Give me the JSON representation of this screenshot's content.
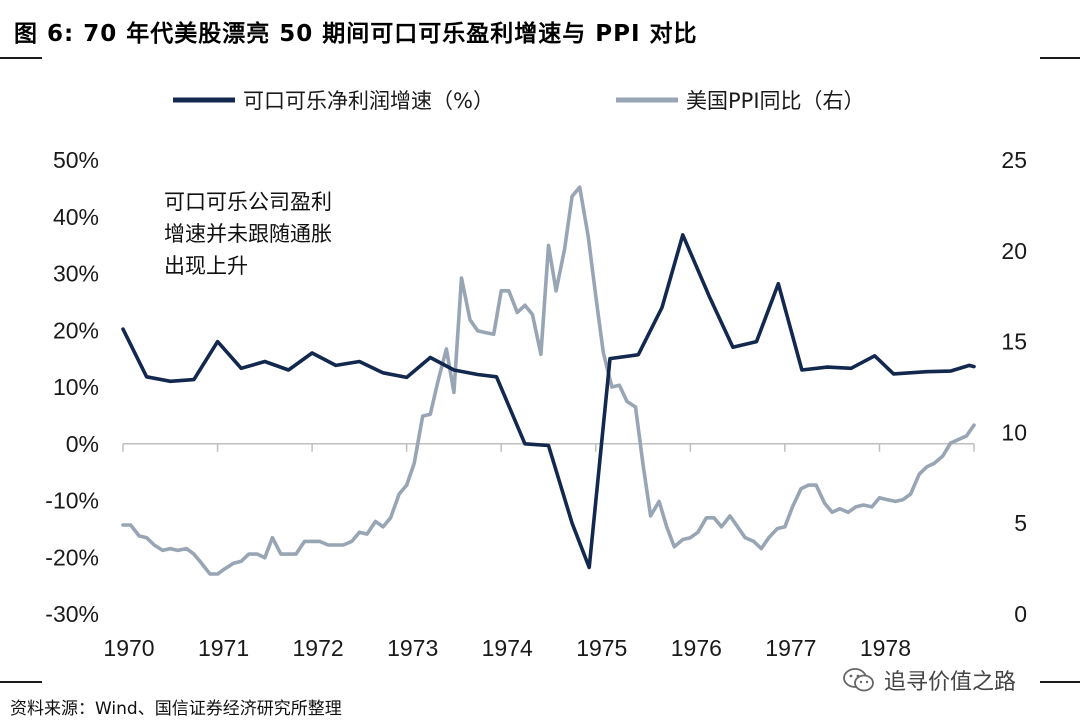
{
  "figure": {
    "title": "图 6: 70 年代美股漂亮 50 期间可口可乐盈利增速与 PPI 对比",
    "source": "资料来源：Wind、国信证券经济研究所整理",
    "watermark": "追寻价值之路",
    "watermark_icon": "wechat-icon",
    "annotation": [
      "可口可乐公司盈利",
      "增速并未跟随通胀",
      "出现上升"
    ]
  },
  "chart_data": {
    "type": "line",
    "x_tick_labels": [
      "1970",
      "1971",
      "1972",
      "1973",
      "1974",
      "1975",
      "1976",
      "1977",
      "1978"
    ],
    "xlim": [
      1970.0,
      1979.0
    ],
    "y_left": {
      "ylim": [
        -30,
        50
      ],
      "ticks": [
        -30,
        -20,
        -10,
        0,
        10,
        20,
        30,
        40,
        50
      ],
      "tick_labels": [
        "-30%",
        "-20%",
        "-10%",
        "0%",
        "10%",
        "20%",
        "30%",
        "40%",
        "50%"
      ]
    },
    "y_right": {
      "ylim": [
        0,
        25
      ],
      "ticks": [
        0,
        5,
        10,
        15,
        20,
        25
      ],
      "tick_labels": [
        "0",
        "5",
        "10",
        "15",
        "20",
        "25"
      ]
    },
    "legend_placement": "top-center",
    "grid": false,
    "series": [
      {
        "name": "可口可乐净利润增速（%）",
        "axis": "left",
        "color": "#13284f",
        "x": [
          1970.0,
          1970.25,
          1970.5,
          1970.75,
          1971.0,
          1971.25,
          1971.5,
          1971.75,
          1972.0,
          1972.25,
          1972.5,
          1972.75,
          1973.0,
          1973.25,
          1973.5,
          1973.75,
          1973.95,
          1974.25,
          1974.5,
          1974.75,
          1974.93,
          1975.15,
          1975.45,
          1975.7,
          1975.92,
          1976.2,
          1976.45,
          1976.7,
          1976.93,
          1977.18,
          1977.45,
          1977.7,
          1977.95,
          1978.15,
          1978.5,
          1978.75,
          1978.95,
          1979.0
        ],
        "values": [
          20.2,
          11.8,
          11.0,
          11.3,
          18.0,
          13.3,
          14.5,
          13.0,
          16.0,
          13.8,
          14.5,
          12.5,
          11.7,
          15.2,
          13.0,
          12.2,
          11.8,
          0.0,
          -0.3,
          -14.0,
          -21.8,
          15.0,
          15.7,
          24.0,
          36.8,
          26.0,
          17.0,
          18.0,
          28.2,
          13.0,
          13.5,
          13.3,
          15.5,
          12.3,
          12.7,
          12.8,
          13.8,
          13.6
        ]
      },
      {
        "name": "美国PPI同比（右）",
        "axis": "right",
        "color": "#98a5b4",
        "x": [
          1970.0,
          1970.08,
          1970.17,
          1970.25,
          1970.33,
          1970.42,
          1970.5,
          1970.58,
          1970.67,
          1970.75,
          1970.83,
          1970.92,
          1971.0,
          1971.08,
          1971.17,
          1971.25,
          1971.33,
          1971.42,
          1971.5,
          1971.58,
          1971.67,
          1971.75,
          1971.83,
          1971.92,
          1972.0,
          1972.08,
          1972.17,
          1972.25,
          1972.33,
          1972.42,
          1972.5,
          1972.58,
          1972.67,
          1972.75,
          1972.83,
          1972.92,
          1973.0,
          1973.08,
          1973.17,
          1973.25,
          1973.33,
          1973.42,
          1973.5,
          1973.58,
          1973.67,
          1973.75,
          1973.83,
          1973.92,
          1974.0,
          1974.08,
          1974.17,
          1974.25,
          1974.33,
          1974.42,
          1974.5,
          1974.58,
          1974.67,
          1974.75,
          1974.83,
          1974.92,
          1975.0,
          1975.08,
          1975.17,
          1975.25,
          1975.33,
          1975.42,
          1975.5,
          1975.58,
          1975.67,
          1975.75,
          1975.83,
          1975.92,
          1976.0,
          1976.08,
          1976.17,
          1976.25,
          1976.33,
          1976.42,
          1976.5,
          1976.58,
          1976.67,
          1976.75,
          1976.83,
          1976.92,
          1977.0,
          1977.08,
          1977.17,
          1977.25,
          1977.33,
          1977.42,
          1977.5,
          1977.58,
          1977.67,
          1977.75,
          1977.83,
          1977.92,
          1978.0,
          1978.08,
          1978.17,
          1978.25,
          1978.33,
          1978.42,
          1978.5,
          1978.58,
          1978.67,
          1978.75,
          1978.83,
          1978.92,
          1979.0
        ],
        "values": [
          4.9,
          4.9,
          4.3,
          4.2,
          3.8,
          3.5,
          3.6,
          3.5,
          3.6,
          3.3,
          2.8,
          2.2,
          2.2,
          2.5,
          2.8,
          2.9,
          3.3,
          3.3,
          3.1,
          4.2,
          3.3,
          3.3,
          3.3,
          4.0,
          4.0,
          4.0,
          3.8,
          3.8,
          3.8,
          4.0,
          4.5,
          4.4,
          5.1,
          4.8,
          5.3,
          6.6,
          7.1,
          8.3,
          10.9,
          11.0,
          12.8,
          14.6,
          12.2,
          18.5,
          16.2,
          15.6,
          15.5,
          15.4,
          17.8,
          17.8,
          16.6,
          17.0,
          16.5,
          14.3,
          20.3,
          17.8,
          20.1,
          23.0,
          23.5,
          20.8,
          17.5,
          14.4,
          12.5,
          12.6,
          11.7,
          11.4,
          8.2,
          5.4,
          6.2,
          4.8,
          3.7,
          4.1,
          4.2,
          4.5,
          5.3,
          5.3,
          4.8,
          5.4,
          4.8,
          4.2,
          4.0,
          3.6,
          4.2,
          4.7,
          4.8,
          5.9,
          6.9,
          7.1,
          7.1,
          6.1,
          5.6,
          5.8,
          5.6,
          5.9,
          6.0,
          5.9,
          6.4,
          6.3,
          6.2,
          6.3,
          6.6,
          7.7,
          8.1,
          8.3,
          8.7,
          9.4,
          9.6,
          9.8,
          10.4
        ]
      }
    ]
  }
}
